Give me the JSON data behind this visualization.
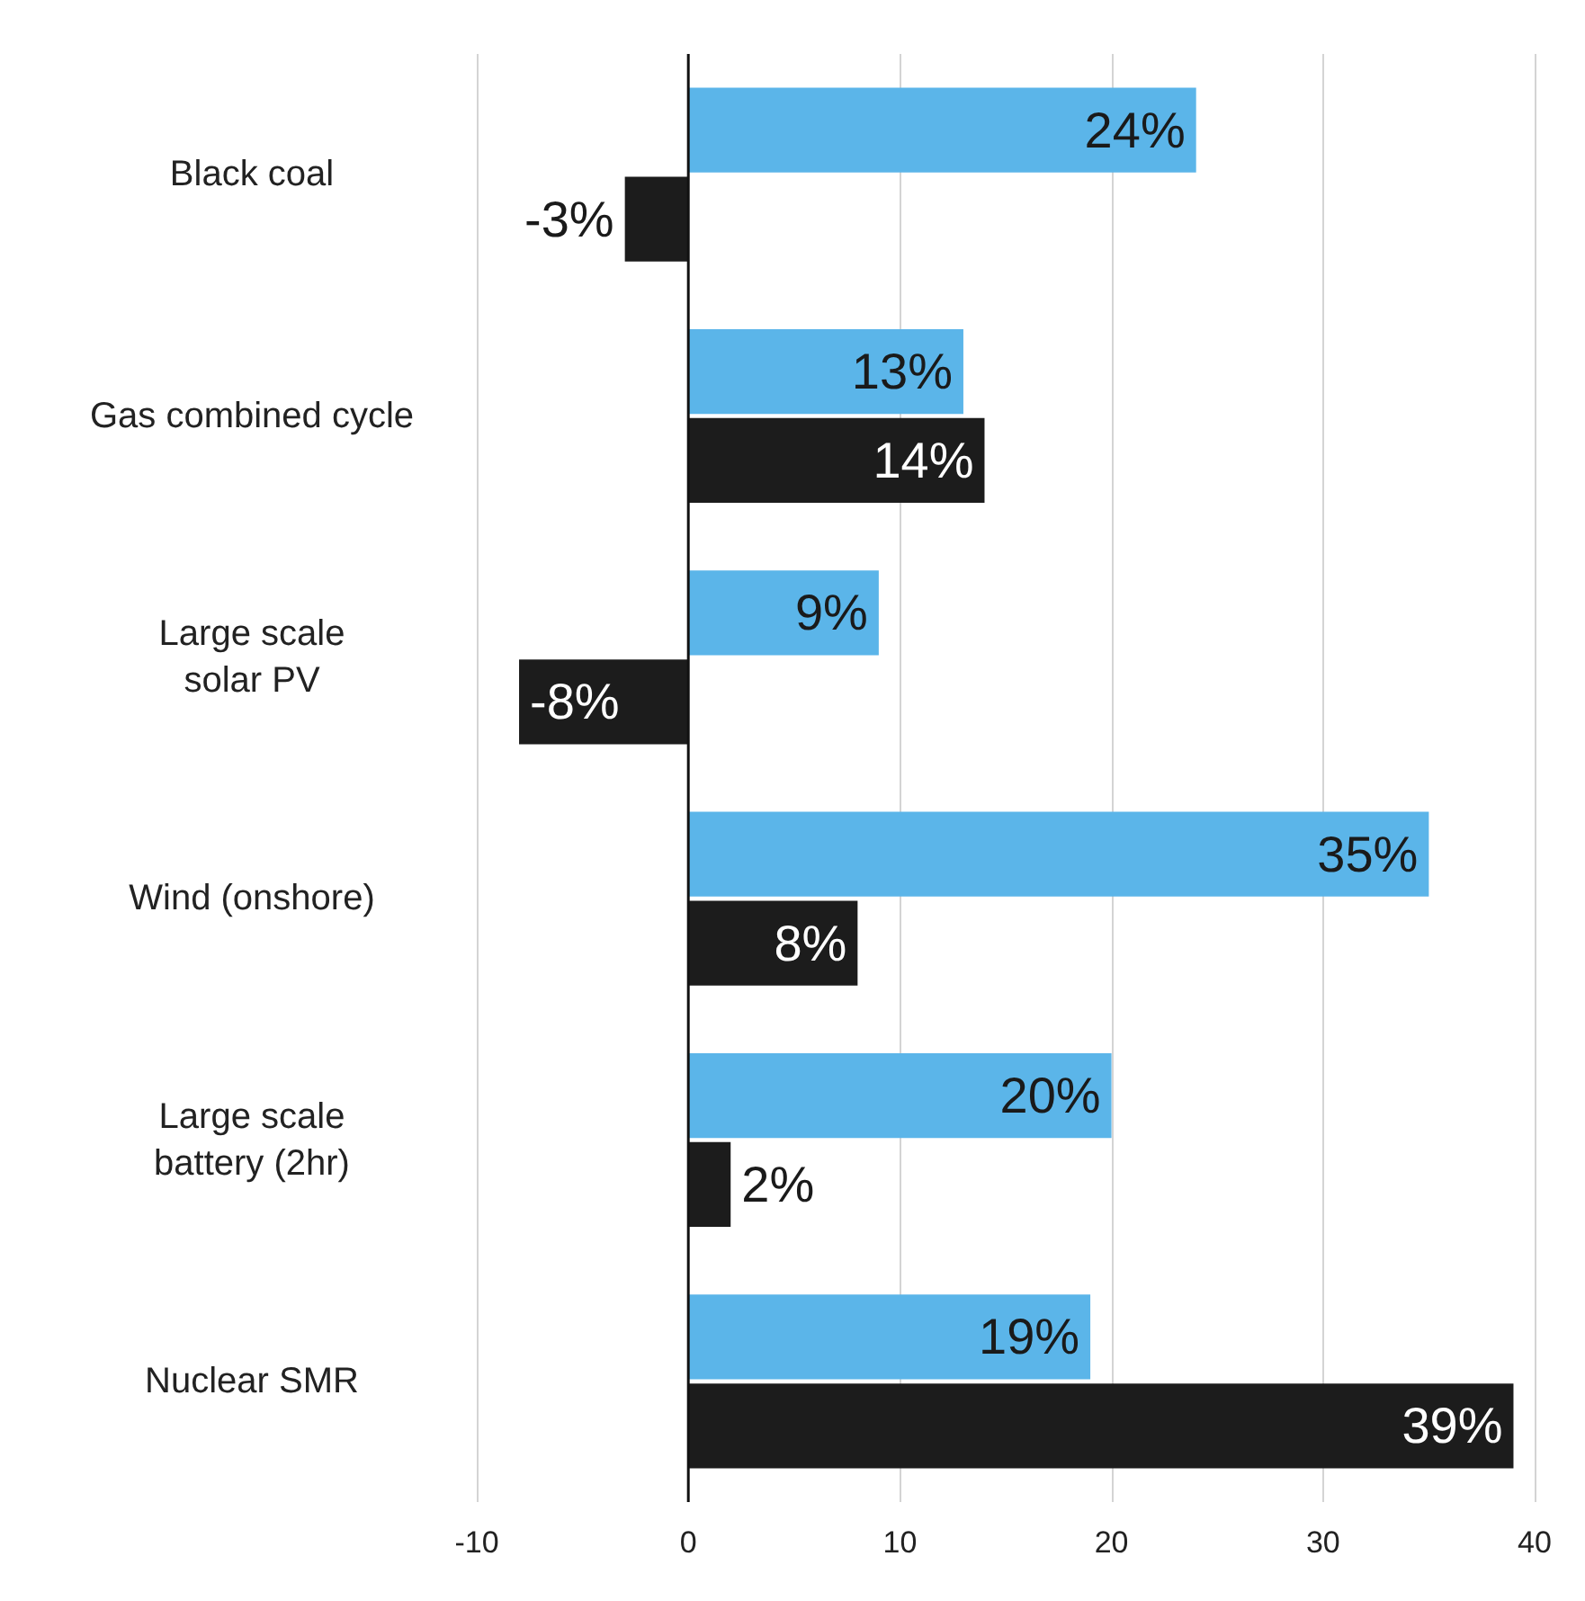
{
  "chart_data": {
    "type": "bar",
    "orientation": "horizontal",
    "categories": [
      "Black coal",
      "Gas combined cycle",
      "Large scale\nsolar PV",
      "Wind (onshore)",
      "Large scale\nbattery (2hr)",
      "Nuclear SMR"
    ],
    "series": [
      {
        "color": "#5bb5e9",
        "values": [
          24,
          13,
          9,
          35,
          20,
          19
        ],
        "value_labels": [
          "24%",
          "13%",
          "9%",
          "35%",
          "20%",
          "19%"
        ]
      },
      {
        "color": "#1c1c1c",
        "values": [
          -3,
          14,
          -8,
          8,
          2,
          39
        ],
        "value_labels": [
          "-3%",
          "14%",
          "-8%",
          "8%",
          "2%",
          "39%"
        ]
      }
    ],
    "xlim": [
      -10,
      40
    ],
    "xticks": [
      -10,
      0,
      10,
      20,
      30,
      40
    ],
    "grid": "x"
  }
}
